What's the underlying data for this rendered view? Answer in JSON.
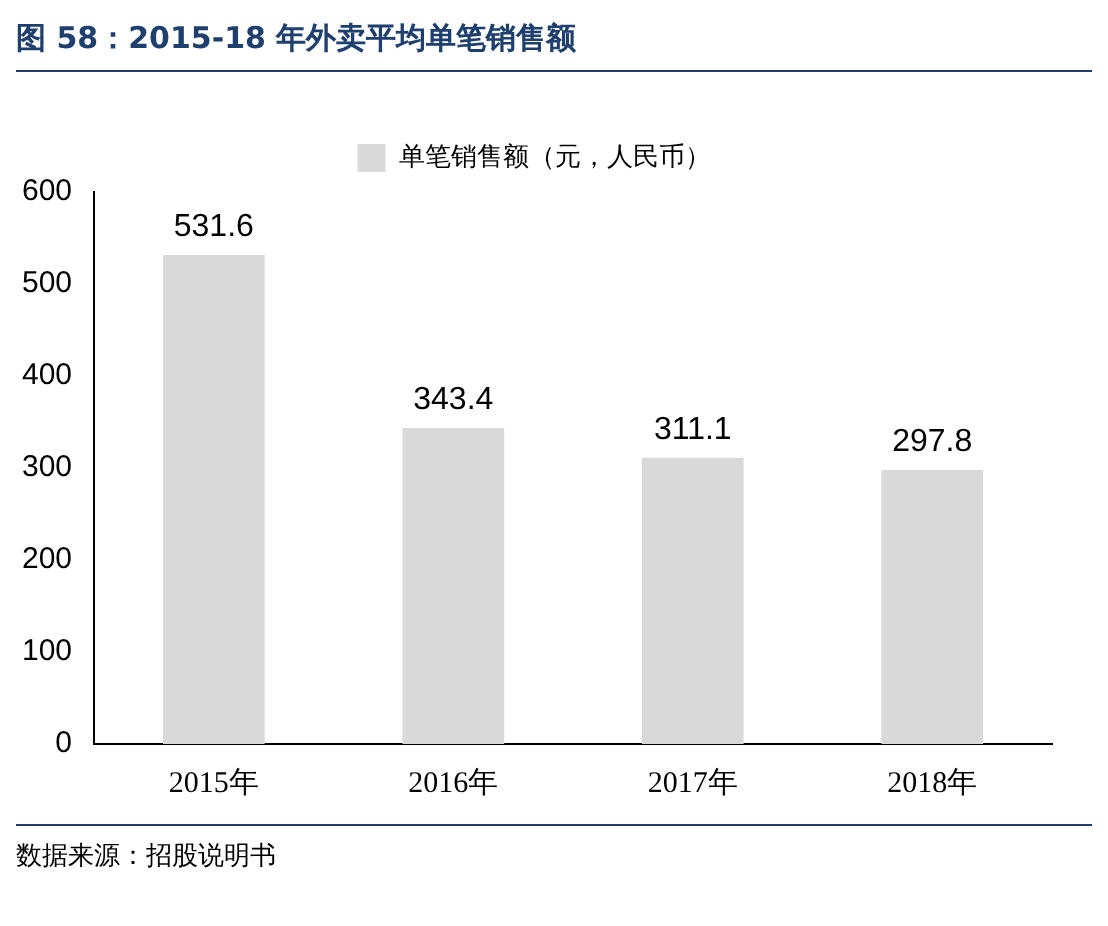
{
  "chart_data": {
    "type": "bar",
    "title": "图 58：2015-18 年外卖平均单笔销售额",
    "categories": [
      "2015年",
      "2016年",
      "2017年",
      "2018年"
    ],
    "series": [
      {
        "name": "单笔销售额（元，人民币）",
        "color": "#d9d9d9",
        "values": [
          531.6,
          343.4,
          311.1,
          297.8
        ]
      }
    ],
    "ylim": [
      0,
      600
    ],
    "yticks": [
      0,
      100,
      200,
      300,
      400,
      500,
      600
    ],
    "grid": false,
    "legend": "top",
    "data_labels": true,
    "annotations": [
      "数据来源：招股说明书"
    ]
  }
}
